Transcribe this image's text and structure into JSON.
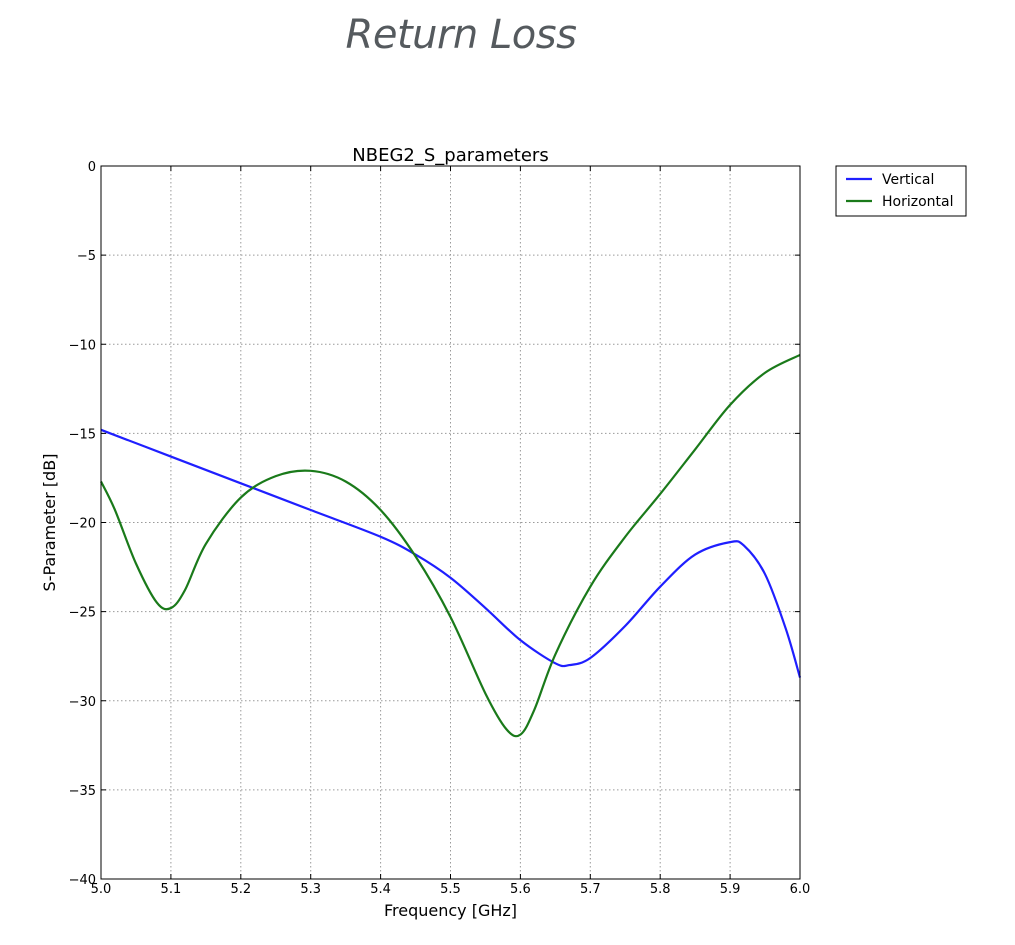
{
  "page": {
    "heading": "Return Loss"
  },
  "chart_data": {
    "type": "line",
    "title": "NBEG2_S_parameters",
    "xlabel": "Frequency [GHz]",
    "ylabel": "S-Parameter [dB]",
    "xlim": [
      5.0,
      6.0
    ],
    "ylim": [
      -40,
      0
    ],
    "xticks": [
      5.0,
      5.1,
      5.2,
      5.3,
      5.4,
      5.5,
      5.6,
      5.7,
      5.8,
      5.9,
      6.0
    ],
    "xtick_labels": [
      "5.0",
      "5.1",
      "5.2",
      "5.3",
      "5.4",
      "5.5",
      "5.6",
      "5.7",
      "5.8",
      "5.9",
      "6.0"
    ],
    "yticks": [
      0,
      -5,
      -10,
      -15,
      -20,
      -25,
      -30,
      -35,
      -40
    ],
    "ytick_labels": [
      "0",
      "−5",
      "−10",
      "−15",
      "−20",
      "−25",
      "−30",
      "−35",
      "−40"
    ],
    "grid": true,
    "legend_position": "outside-top-right",
    "series": [
      {
        "name": "Vertical",
        "color": "#1f1fff",
        "x": [
          5.0,
          5.1,
          5.2,
          5.3,
          5.4,
          5.45,
          5.5,
          5.55,
          5.6,
          5.65,
          5.67,
          5.7,
          5.75,
          5.8,
          5.85,
          5.9,
          5.92,
          5.95,
          5.98,
          6.0
        ],
        "y": [
          -14.8,
          -16.3,
          -17.8,
          -19.3,
          -20.8,
          -21.8,
          -23.1,
          -24.8,
          -26.6,
          -27.9,
          -28.0,
          -27.6,
          -25.8,
          -23.6,
          -21.8,
          -21.1,
          -21.3,
          -22.9,
          -26.0,
          -28.7
        ]
      },
      {
        "name": "Horizontal",
        "color": "#1a7a1a",
        "x": [
          5.0,
          5.02,
          5.05,
          5.08,
          5.1,
          5.12,
          5.15,
          5.2,
          5.25,
          5.3,
          5.35,
          5.4,
          5.45,
          5.5,
          5.55,
          5.58,
          5.6,
          5.62,
          5.65,
          5.7,
          5.75,
          5.8,
          5.85,
          5.9,
          5.95,
          6.0
        ],
        "y": [
          -17.7,
          -19.3,
          -22.3,
          -24.5,
          -24.8,
          -23.8,
          -21.2,
          -18.6,
          -17.4,
          -17.1,
          -17.7,
          -19.3,
          -21.9,
          -25.3,
          -29.6,
          -31.6,
          -31.9,
          -30.5,
          -27.4,
          -23.6,
          -20.8,
          -18.4,
          -15.9,
          -13.4,
          -11.6,
          -10.6
        ]
      }
    ]
  }
}
